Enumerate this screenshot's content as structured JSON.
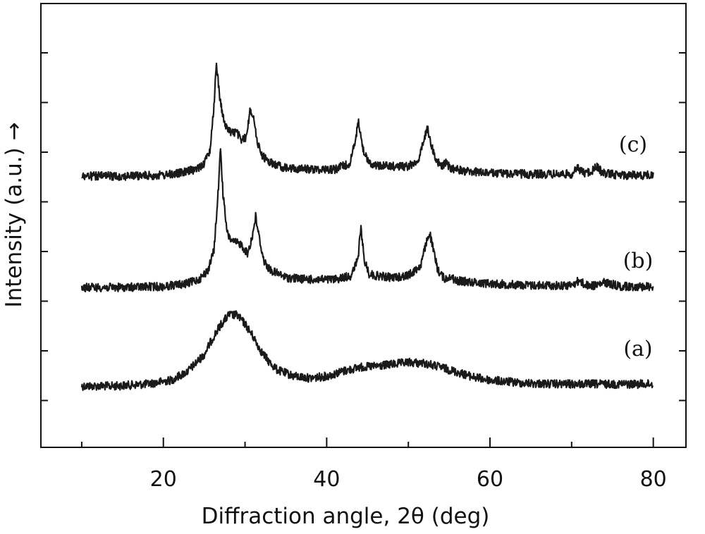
{
  "chart_data": {
    "type": "line",
    "title": "",
    "xlabel": "Diffraction angle, 2θ (deg)",
    "ylabel": "Intensity (a.u.) →",
    "xlim": [
      5,
      84
    ],
    "x_ticks": [
      20,
      40,
      60,
      80
    ],
    "y_ticks_shown": false,
    "grid": false,
    "legend": "none",
    "series": [
      {
        "name": "(a)",
        "x": [
          10,
          14,
          18,
          21,
          23,
          25,
          26,
          27,
          28,
          29,
          30,
          31,
          32,
          33,
          34,
          36,
          38,
          40,
          42,
          44,
          46,
          48,
          50,
          52,
          54,
          56,
          58,
          60,
          64,
          68,
          72,
          76,
          80
        ],
        "y": [
          0.0,
          0.0,
          0.02,
          0.06,
          0.15,
          0.32,
          0.48,
          0.62,
          0.72,
          0.72,
          0.63,
          0.5,
          0.35,
          0.24,
          0.16,
          0.1,
          0.08,
          0.1,
          0.15,
          0.19,
          0.2,
          0.22,
          0.24,
          0.23,
          0.19,
          0.14,
          0.09,
          0.06,
          0.03,
          0.02,
          0.02,
          0.02,
          0.02
        ]
      },
      {
        "name": "(b)",
        "x": [
          10,
          15,
          20,
          23,
          24.5,
          25.5,
          26.2,
          26.7,
          27.0,
          27.3,
          27.8,
          28.5,
          29.5,
          30.3,
          30.9,
          31.3,
          31.7,
          32.3,
          33,
          35,
          38,
          41,
          43,
          43.8,
          44.2,
          44.6,
          45.2,
          46,
          48,
          50,
          51.5,
          52.2,
          52.6,
          53.0,
          53.6,
          54.5,
          55.1,
          55.7,
          57,
          60,
          65,
          70,
          70.9,
          71.8,
          73,
          74,
          76,
          80
        ],
        "y": [
          0.0,
          0.0,
          0.01,
          0.04,
          0.09,
          0.18,
          0.38,
          0.95,
          1.42,
          0.95,
          0.55,
          0.46,
          0.44,
          0.34,
          0.52,
          0.72,
          0.52,
          0.27,
          0.18,
          0.1,
          0.08,
          0.08,
          0.12,
          0.28,
          0.6,
          0.28,
          0.14,
          0.12,
          0.1,
          0.12,
          0.22,
          0.45,
          0.56,
          0.4,
          0.18,
          0.08,
          0.12,
          0.07,
          0.06,
          0.04,
          0.02,
          0.02,
          0.07,
          0.02,
          0.02,
          0.05,
          0.01,
          0.01
        ]
      },
      {
        "name": "(c)",
        "x": [
          10,
          15,
          20,
          22,
          24,
          25,
          25.7,
          26.2,
          26.5,
          26.9,
          27.5,
          28.2,
          29.0,
          29.6,
          30.2,
          30.6,
          31.0,
          31.4,
          32,
          33,
          35,
          38,
          41,
          42.8,
          43.5,
          43.9,
          44.3,
          45,
          46,
          48,
          50,
          51.2,
          51.9,
          52.3,
          52.7,
          53.3,
          54,
          54.6,
          55.2,
          57,
          60,
          65,
          70,
          70.8,
          71.5,
          72.5,
          73.1,
          73.8,
          76,
          80
        ],
        "y": [
          0.0,
          0.0,
          0.01,
          0.03,
          0.07,
          0.13,
          0.26,
          0.72,
          1.15,
          0.8,
          0.52,
          0.45,
          0.44,
          0.36,
          0.4,
          0.68,
          0.62,
          0.38,
          0.22,
          0.14,
          0.08,
          0.07,
          0.07,
          0.13,
          0.34,
          0.58,
          0.32,
          0.15,
          0.11,
          0.1,
          0.1,
          0.16,
          0.35,
          0.5,
          0.36,
          0.18,
          0.1,
          0.13,
          0.08,
          0.05,
          0.03,
          0.02,
          0.02,
          0.08,
          0.03,
          0.05,
          0.1,
          0.03,
          0.01,
          0.01
        ]
      }
    ]
  }
}
